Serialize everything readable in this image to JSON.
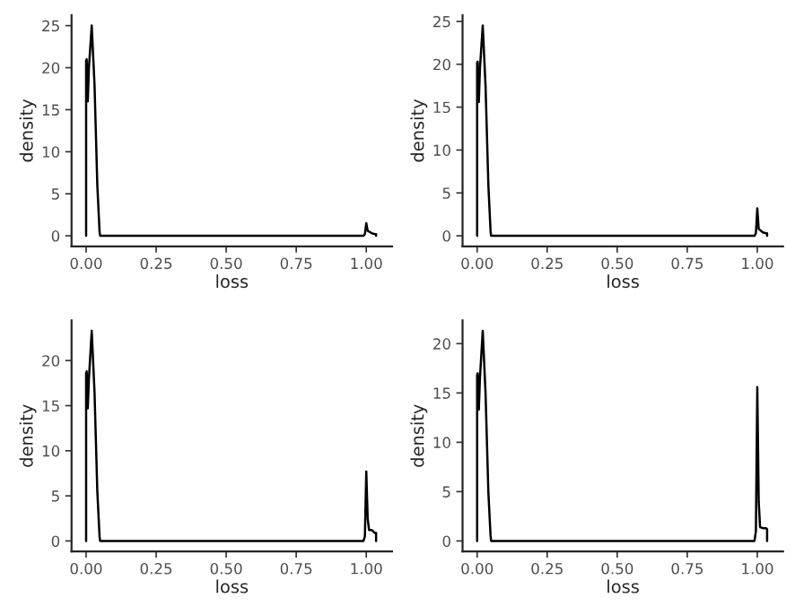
{
  "chart_data": [
    {
      "type": "line",
      "xlabel": "loss",
      "ylabel": "density",
      "xlim": [
        -0.052,
        1.092
      ],
      "ylim": [
        -1.25,
        26.25
      ],
      "xticks": [
        {
          "value": 0,
          "label": "0.00"
        },
        {
          "value": 0.25,
          "label": "0.25"
        },
        {
          "value": 0.5,
          "label": "0.50"
        },
        {
          "value": 0.75,
          "label": "0.75"
        },
        {
          "value": 1,
          "label": "1.00"
        }
      ],
      "yticks": [
        0,
        5,
        10,
        15,
        20,
        25
      ],
      "series": [
        {
          "color": "#000000",
          "x": [
            0,
            0,
            0.002,
            0.006,
            0.01,
            0.02,
            0.03,
            0.04,
            0.048,
            0.05,
            0.99,
            0.995,
            1.0,
            1.005,
            1.02,
            1.03,
            1.035,
            1.035
          ],
          "values": [
            0,
            20.8,
            21,
            16,
            20,
            25,
            18,
            6,
            0.5,
            0,
            0,
            0.2,
            1.5,
            0.6,
            0.3,
            0.2,
            0.2,
            0
          ]
        }
      ]
    },
    {
      "type": "line",
      "xlabel": "loss",
      "ylabel": "density",
      "xlim": [
        -0.052,
        1.092
      ],
      "ylim": [
        -1.225,
        25.725
      ],
      "xticks": [
        {
          "value": 0,
          "label": "0.00"
        },
        {
          "value": 0.25,
          "label": "0.25"
        },
        {
          "value": 0.5,
          "label": "0.50"
        },
        {
          "value": 0.75,
          "label": "0.75"
        },
        {
          "value": 1,
          "label": "1.00"
        }
      ],
      "yticks": [
        0,
        5,
        10,
        15,
        20,
        25
      ],
      "series": [
        {
          "color": "#000000",
          "x": [
            0,
            0,
            0.002,
            0.006,
            0.01,
            0.02,
            0.03,
            0.04,
            0.048,
            0.05,
            0.99,
            0.995,
            1.0,
            1.005,
            1.02,
            1.03,
            1.035,
            1.035
          ],
          "values": [
            0,
            20.2,
            20.3,
            15.6,
            19.5,
            24.5,
            17.5,
            6,
            0.5,
            0,
            0,
            0.3,
            3.2,
            0.8,
            0.4,
            0.3,
            0.3,
            0
          ]
        }
      ]
    },
    {
      "type": "line",
      "xlabel": "loss",
      "ylabel": "density",
      "xlim": [
        -0.052,
        1.092
      ],
      "ylim": [
        -1.165,
        24.465
      ],
      "xticks": [
        {
          "value": 0,
          "label": "0.00"
        },
        {
          "value": 0.25,
          "label": "0.25"
        },
        {
          "value": 0.5,
          "label": "0.50"
        },
        {
          "value": 0.75,
          "label": "0.75"
        },
        {
          "value": 1,
          "label": "1.00"
        }
      ],
      "yticks": [
        0,
        5,
        10,
        15,
        20
      ],
      "series": [
        {
          "color": "#000000",
          "x": [
            0,
            0,
            0.002,
            0.006,
            0.01,
            0.02,
            0.03,
            0.04,
            0.048,
            0.05,
            0.99,
            0.995,
            1.0,
            1.005,
            1.01,
            1.02,
            1.03,
            1.035,
            1.035
          ],
          "values": [
            0,
            18.6,
            18.8,
            14.7,
            18,
            23.3,
            16.5,
            5.5,
            0.5,
            0,
            0,
            0.5,
            7.7,
            2.5,
            1.2,
            1.2,
            0.9,
            0.9,
            0
          ]
        }
      ]
    },
    {
      "type": "line",
      "xlabel": "loss",
      "ylabel": "density",
      "xlim": [
        -0.052,
        1.092
      ],
      "ylim": [
        -1.065,
        22.365
      ],
      "xticks": [
        {
          "value": 0,
          "label": "0.00"
        },
        {
          "value": 0.25,
          "label": "0.25"
        },
        {
          "value": 0.5,
          "label": "0.50"
        },
        {
          "value": 0.75,
          "label": "0.75"
        },
        {
          "value": 1,
          "label": "1.00"
        }
      ],
      "yticks": [
        0,
        5,
        10,
        15,
        20
      ],
      "series": [
        {
          "color": "#000000",
          "x": [
            0,
            0,
            0.002,
            0.006,
            0.01,
            0.02,
            0.03,
            0.04,
            0.048,
            0.05,
            0.99,
            0.995,
            1.0,
            1.005,
            1.01,
            1.02,
            1.03,
            1.035,
            1.035
          ],
          "values": [
            0,
            16.8,
            17,
            13.3,
            16.5,
            21.3,
            15,
            5,
            0.5,
            0,
            0,
            1,
            15.6,
            4,
            1.4,
            1.3,
            1.3,
            1.2,
            0
          ]
        }
      ]
    }
  ]
}
